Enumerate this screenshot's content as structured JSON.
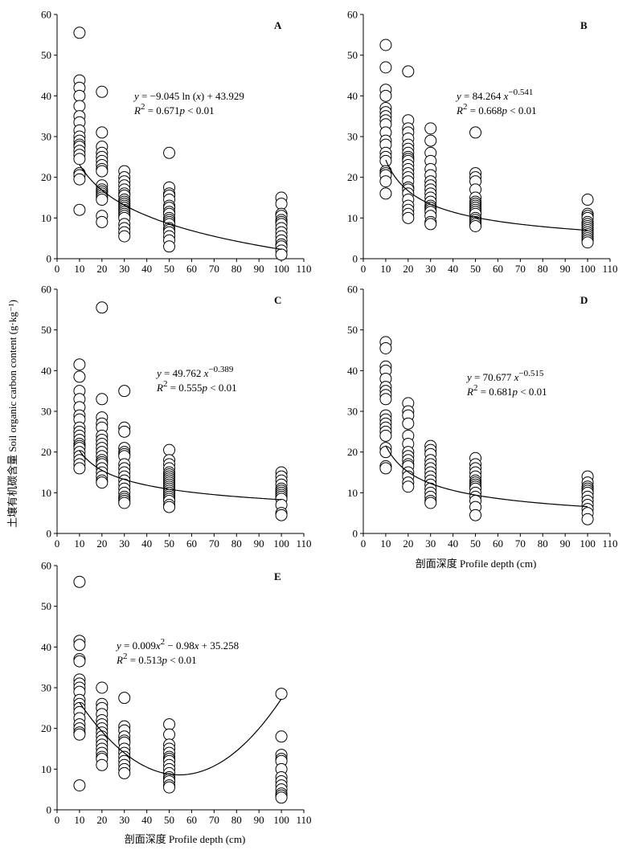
{
  "figure": {
    "ylabel": "土壤有机碳含量  Soil organic carbon content (g·kg⁻¹)",
    "xlabel": "剖面深度  Profile depth (cm)"
  },
  "chart_data": [
    {
      "type": "scatter",
      "panel": "A",
      "xlim": [
        0,
        110
      ],
      "ylim": [
        0,
        60
      ],
      "xticks": [
        0,
        10,
        20,
        30,
        40,
        50,
        60,
        70,
        80,
        90,
        100,
        110
      ],
      "yticks": [
        0,
        10,
        20,
        30,
        40,
        50,
        60
      ],
      "eq_line1": {
        "y": "y",
        "eq": " = −9.045 ln (",
        "x": "x",
        "tail": ") + 43.929"
      },
      "eq_line2": {
        "R": "R",
        "sup": "2",
        "val": " = 0.671",
        "p": "p",
        "pval": " < 0.01"
      },
      "fit": {
        "form": "log",
        "a": -9.045,
        "b": 43.929
      },
      "points": [
        {
          "x": 10,
          "y": [
            55.5,
            43.8,
            42,
            40,
            37.5,
            35,
            33.5,
            31.5,
            30,
            29,
            28,
            27.5,
            26.5,
            25.5,
            24.5,
            21,
            20.5,
            19.5,
            12
          ]
        },
        {
          "x": 20,
          "y": [
            41,
            31,
            27.5,
            26,
            25,
            24,
            23,
            22,
            21.5,
            18,
            17,
            16.5,
            16,
            15.5,
            15,
            14.5,
            10.5,
            9
          ]
        },
        {
          "x": 30,
          "y": [
            21.5,
            20,
            19,
            18,
            17,
            16,
            15.5,
            14.5,
            14,
            13.5,
            13,
            12.5,
            12,
            11.5,
            11,
            10.5,
            10,
            8.5,
            7.5,
            6.5,
            5.5
          ]
        },
        {
          "x": 50,
          "y": [
            26,
            17.5,
            16,
            15.5,
            14.5,
            13,
            12.5,
            11.5,
            11,
            10,
            9.5,
            9,
            8.5,
            7.5,
            7,
            6.5,
            5.5,
            4.5,
            3
          ]
        },
        {
          "x": 100,
          "y": [
            15,
            13.5,
            11,
            10.5,
            9.5,
            9,
            8.5,
            7.5,
            6.5,
            5.5,
            4.5,
            3.5,
            3,
            2,
            1
          ]
        }
      ]
    },
    {
      "type": "scatter",
      "panel": "B",
      "xlim": [
        0,
        110
      ],
      "ylim": [
        0,
        60
      ],
      "xticks": [
        0,
        10,
        20,
        30,
        40,
        50,
        60,
        70,
        80,
        90,
        100,
        110
      ],
      "yticks": [
        0,
        10,
        20,
        30,
        40,
        50,
        60
      ],
      "eq_line1": {
        "y": "y",
        "eq": " = 84.264 ",
        "x": "x",
        "sup": "−0.541"
      },
      "eq_line2": {
        "R": "R",
        "sup": "2",
        "val": " = 0.668",
        "p": "p",
        "pval": " < 0.01"
      },
      "fit": {
        "form": "power",
        "a": 84.264,
        "b": -0.541
      },
      "points": [
        {
          "x": 10,
          "y": [
            52.5,
            47,
            41.5,
            40,
            37,
            36,
            35,
            34,
            33,
            31,
            29,
            28,
            26,
            25,
            24,
            21.5,
            21,
            20.5,
            19,
            16
          ]
        },
        {
          "x": 20,
          "y": [
            46,
            34,
            32,
            31,
            29.5,
            28,
            27,
            26,
            25,
            24.5,
            24,
            23,
            22,
            21,
            20,
            19,
            17.5,
            17,
            16,
            14.5,
            13,
            12,
            11,
            10
          ]
        },
        {
          "x": 30,
          "y": [
            32,
            29,
            26,
            24,
            22,
            20.5,
            19,
            18,
            17,
            16,
            15,
            14,
            13,
            12.5,
            12,
            11.5,
            10.5,
            9,
            8.5
          ]
        },
        {
          "x": 50,
          "y": [
            31,
            21,
            20,
            19,
            17,
            15,
            14,
            13.5,
            13,
            12.5,
            12,
            11.5,
            11,
            10,
            9.5,
            9,
            8.5,
            8
          ]
        },
        {
          "x": 100,
          "y": [
            14.5,
            11,
            10.5,
            10,
            9,
            8.5,
            8,
            7.5,
            7,
            6.5,
            6,
            5.5,
            5,
            4.5,
            4
          ]
        }
      ]
    },
    {
      "type": "scatter",
      "panel": "C",
      "xlim": [
        0,
        110
      ],
      "ylim": [
        0,
        60
      ],
      "xticks": [
        0,
        10,
        20,
        30,
        40,
        50,
        60,
        70,
        80,
        90,
        100,
        110
      ],
      "yticks": [
        0,
        10,
        20,
        30,
        40,
        50,
        60
      ],
      "eq_line1": {
        "y": "y",
        "eq": " = 49.762 ",
        "x": "x",
        "sup": "−0.389"
      },
      "eq_line2": {
        "R": "R",
        "sup": "2",
        "val": " = 0.555",
        "p": "p",
        "pval": " < 0.01"
      },
      "fit": {
        "form": "power",
        "a": 49.762,
        "b": -0.389
      },
      "points": [
        {
          "x": 10,
          "y": [
            41.5,
            38.5,
            35,
            33,
            31,
            29,
            28,
            26,
            25,
            24,
            23,
            22,
            21.5,
            21,
            20,
            19,
            18,
            17,
            16
          ]
        },
        {
          "x": 20,
          "y": [
            55.5,
            33,
            28.5,
            27,
            26,
            24,
            23,
            22,
            21,
            20,
            19,
            18,
            17.5,
            17,
            16,
            15,
            14,
            13,
            12.5
          ]
        },
        {
          "x": 30,
          "y": [
            35,
            26,
            25,
            21,
            20,
            19.5,
            19,
            17,
            16,
            15,
            14,
            13,
            12,
            11,
            10,
            9,
            8.5,
            8,
            7.5
          ]
        },
        {
          "x": 50,
          "y": [
            20.5,
            18,
            17,
            16,
            15,
            14.5,
            14,
            13.5,
            13,
            12.5,
            12,
            11.5,
            11,
            10.5,
            10,
            9.5,
            9,
            8.5,
            8,
            7,
            6.5
          ]
        },
        {
          "x": 100,
          "y": [
            15,
            14,
            13,
            12,
            11,
            10.5,
            10,
            9.5,
            9,
            8.5,
            7,
            5,
            4.5
          ]
        }
      ]
    },
    {
      "type": "scatter",
      "panel": "D",
      "xlim": [
        0,
        110
      ],
      "ylim": [
        0,
        60
      ],
      "xticks": [
        0,
        10,
        20,
        30,
        40,
        50,
        60,
        70,
        80,
        90,
        100,
        110
      ],
      "yticks": [
        0,
        10,
        20,
        30,
        40,
        50,
        60
      ],
      "eq_line1": {
        "y": "y",
        "eq": " = 70.677 ",
        "x": "x",
        "sup": "−0.515"
      },
      "eq_line2": {
        "R": "R",
        "sup": "2",
        "val": " = 0.681",
        "p": "p",
        "pval": " < 0.01"
      },
      "fit": {
        "form": "power",
        "a": 70.677,
        "b": -0.515
      },
      "points": [
        {
          "x": 10,
          "y": [
            47,
            45.5,
            41,
            40,
            38,
            36,
            35,
            34,
            33,
            29,
            28,
            27,
            26,
            25,
            24,
            21,
            20,
            16.5,
            16
          ]
        },
        {
          "x": 20,
          "y": [
            32,
            30,
            29,
            27,
            24,
            22,
            20,
            19,
            18,
            17,
            16.5,
            15,
            14,
            12.5,
            11.5
          ]
        },
        {
          "x": 30,
          "y": [
            21.5,
            20.5,
            19.5,
            18,
            17,
            16,
            15,
            14,
            13,
            12,
            11,
            10,
            9,
            8,
            7.5
          ]
        },
        {
          "x": 50,
          "y": [
            18.5,
            17,
            16,
            15,
            14,
            13,
            12.5,
            12,
            11.5,
            11,
            10,
            9,
            8,
            6.5,
            4.5
          ]
        },
        {
          "x": 100,
          "y": [
            14,
            12.5,
            11.5,
            11,
            10.5,
            10,
            9,
            8,
            7,
            6,
            5,
            3.5
          ]
        }
      ]
    },
    {
      "type": "scatter",
      "panel": "E",
      "xlim": [
        0,
        110
      ],
      "ylim": [
        0,
        60
      ],
      "xticks": [
        0,
        10,
        20,
        30,
        40,
        50,
        60,
        70,
        80,
        90,
        100,
        110
      ],
      "yticks": [
        0,
        10,
        20,
        30,
        40,
        50,
        60
      ],
      "eq_line1": {
        "y": "y",
        "eq": " = 0.009",
        "x": "x",
        "sup": "2",
        "tail": " − 0.98",
        "x2": "x",
        "tail2": " + 35.258"
      },
      "eq_line2": {
        "R": "R",
        "sup": "2",
        "val": " = 0.513",
        "p": "p",
        "pval": " < 0.01"
      },
      "fit": {
        "form": "quadratic",
        "a": 0.009,
        "b": -0.98,
        "c": 35.258
      },
      "points": [
        {
          "x": 10,
          "y": [
            56,
            41.5,
            40.5,
            37,
            36.5,
            32,
            31,
            30,
            29,
            27,
            26,
            25,
            24,
            22.5,
            21,
            20,
            19,
            18.5,
            6
          ]
        },
        {
          "x": 20,
          "y": [
            30,
            26,
            25,
            23.5,
            22,
            21,
            20,
            19,
            18,
            17,
            16,
            15,
            14,
            13,
            12.5,
            11
          ]
        },
        {
          "x": 30,
          "y": [
            27.5,
            20.5,
            19.5,
            18,
            17,
            16.5,
            15,
            14,
            13,
            12,
            11,
            10,
            9
          ]
        },
        {
          "x": 50,
          "y": [
            21,
            18.5,
            16,
            15,
            14,
            13,
            12.5,
            12,
            11,
            10,
            9,
            8,
            7.5,
            7,
            6,
            5.5
          ]
        },
        {
          "x": 100,
          "y": [
            28.5,
            18,
            13.5,
            12.5,
            12,
            10,
            8,
            7,
            6,
            5,
            4,
            3.5,
            3
          ]
        }
      ]
    }
  ]
}
